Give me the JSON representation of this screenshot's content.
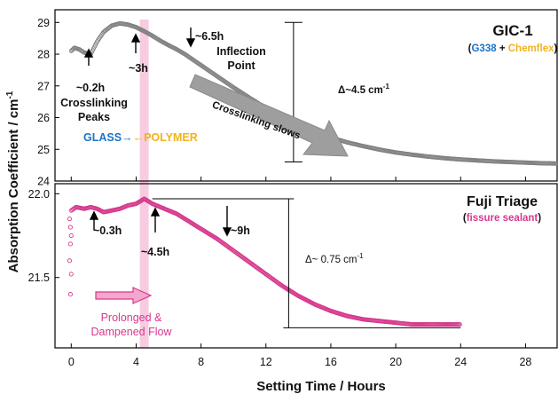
{
  "chart_data": [
    {
      "type": "scatter",
      "panel": "top",
      "title": "GIC-1",
      "subtitle": {
        "open": "(",
        "part1": "G338",
        "plus": " + ",
        "part2": "Chemflex",
        "close": ")"
      },
      "colors": {
        "series": "#808080",
        "part1": "#1a73c9",
        "part2": "#f2b21b"
      },
      "xlim": [
        -1,
        30
      ],
      "ylim": [
        24,
        29.4
      ],
      "yticks": [
        24,
        25,
        26,
        27,
        28,
        29
      ],
      "series": [
        {
          "x": [
            0,
            0.2,
            0.5,
            0.8,
            1.2,
            1.6,
            2.0,
            2.5,
            3.0,
            3.5,
            4.0,
            4.5,
            5.0,
            5.5,
            6.0,
            6.5,
            7.0,
            8.0,
            9.0,
            10.0,
            11.0,
            12.0,
            13.0,
            14.0,
            15.0,
            16.0,
            17.0,
            18.0,
            19.0,
            20.0,
            21.0,
            22.0,
            23.0,
            24.0,
            25.0,
            26.0,
            27.0,
            28.0,
            29.0,
            30.0
          ],
          "y": [
            28.1,
            28.2,
            28.15,
            28.05,
            28.0,
            28.4,
            28.7,
            28.9,
            28.97,
            28.93,
            28.85,
            28.72,
            28.58,
            28.42,
            28.28,
            28.15,
            28.0,
            27.65,
            27.3,
            26.95,
            26.62,
            26.3,
            26.02,
            25.77,
            25.55,
            25.37,
            25.22,
            25.1,
            24.99,
            24.9,
            24.83,
            24.77,
            24.72,
            24.68,
            24.65,
            24.62,
            24.6,
            24.58,
            24.56,
            24.55
          ]
        }
      ],
      "annotations": {
        "t1": "~0.2h",
        "t2": "Crosslinking",
        "t3": "Peaks",
        "t4": "~3h",
        "t5": "~6.5h",
        "t6": "Inflection",
        "t7": "Point",
        "t8": "Crosslinking slows",
        "t9": "Δ~4.5 cm",
        "t9_sup": "-1",
        "glass": "GLASS→",
        "polymer": "←POLYMER"
      },
      "annotation_colors": {
        "glass": "#1a73c9",
        "polymer": "#f2b21b"
      }
    },
    {
      "type": "scatter",
      "panel": "bottom",
      "title": "Fuji Triage",
      "subtitle": {
        "open": "(",
        "part1": "fissure sealant",
        "close": ")"
      },
      "colors": {
        "series": "#d6388c",
        "part1": "#d6388c"
      },
      "xlim": [
        -1,
        30
      ],
      "ylim": [
        21.08,
        22.06
      ],
      "yticks": [
        21.5,
        22.0
      ],
      "ytick_labels": [
        "21.5",
        "22.0"
      ],
      "series": [
        {
          "x": [
            0,
            0.3,
            0.8,
            1.2,
            1.6,
            2.0,
            2.5,
            3.0,
            3.5,
            4.0,
            4.5,
            5.0,
            5.5,
            6.0,
            6.5,
            7.0,
            7.5,
            8.0,
            8.5,
            9.0,
            10.0,
            11.0,
            12.0,
            13.0,
            14.0,
            15.0,
            16.0,
            17.0,
            18.0,
            19.0,
            20.0,
            21.0,
            22.0,
            23.0,
            24.0
          ],
          "y": [
            21.9,
            21.92,
            21.91,
            21.92,
            21.91,
            21.89,
            21.9,
            21.91,
            21.93,
            21.94,
            21.97,
            21.94,
            21.92,
            21.9,
            21.88,
            21.85,
            21.82,
            21.79,
            21.76,
            21.73,
            21.66,
            21.59,
            21.52,
            21.45,
            21.39,
            21.34,
            21.3,
            21.27,
            21.25,
            21.24,
            21.23,
            21.22,
            21.22,
            21.22,
            21.22
          ]
        },
        {
          "x": [
            -0.1,
            -0.05,
            0,
            -0.05,
            -0.1,
            0,
            -0.05
          ],
          "y": [
            21.85,
            21.8,
            21.75,
            21.7,
            21.6,
            21.52,
            21.4
          ]
        }
      ],
      "annotations": {
        "t1": "~0.3h",
        "t2": "~4.5h",
        "t3": "~9h",
        "t4": "Δ~ 0.75 cm",
        "t4_sup": "-1",
        "t5": "Prolonged &",
        "t6": "Dampened Flow"
      }
    }
  ],
  "axes": {
    "xlabel": "Setting Time / Hours",
    "ylabel": "Absorption Coefficient / cm",
    "ylabel_sup": "-1",
    "xticks": [
      0,
      4,
      8,
      12,
      16,
      20,
      24,
      28
    ]
  }
}
